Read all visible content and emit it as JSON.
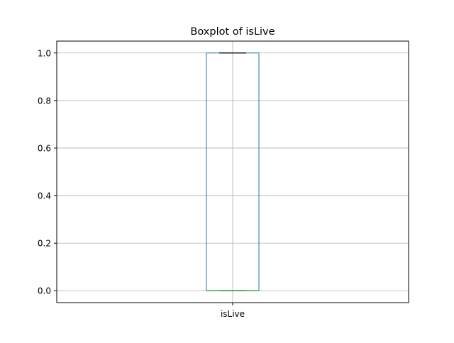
{
  "chart_data": {
    "type": "box",
    "title": "Boxplot of isLive",
    "xlabel": "",
    "ylabel": "",
    "categories": [
      "isLive"
    ],
    "series": [
      {
        "name": "isLive",
        "whisker_low": 0.0,
        "q1": 0.0,
        "median": 0.0,
        "q3": 1.0,
        "whisker_high": 1.0
      }
    ],
    "ylim": [
      -0.05,
      1.05
    ],
    "yticks": [
      0.0,
      0.2,
      0.4,
      0.6,
      0.8,
      1.0
    ],
    "ytick_labels": [
      "0.0",
      "0.2",
      "0.4",
      "0.6",
      "0.8",
      "1.0"
    ],
    "grid": true
  },
  "colors": {
    "box": "#1f77b4",
    "median": "#2ca02c",
    "whisker": "#000000",
    "grid": "#b0b0b0",
    "axes": "#000000"
  }
}
